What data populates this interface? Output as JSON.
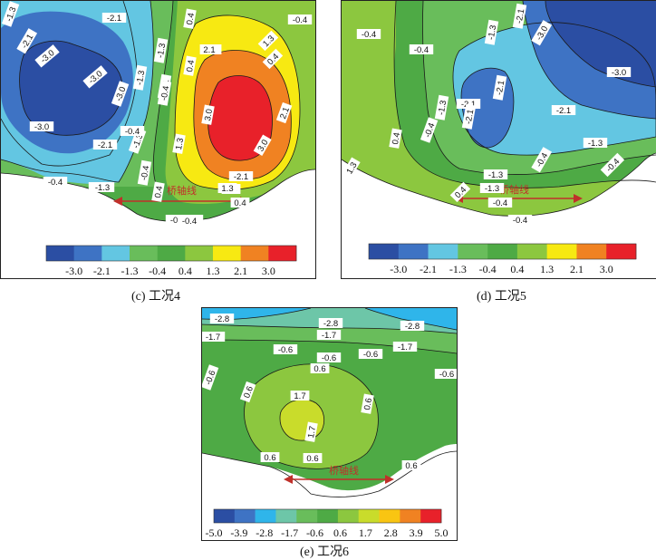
{
  "figure": {
    "panels": [
      {
        "id": "c",
        "caption": "(c) 工况4",
        "bridge_label": "桥轴线",
        "colorbar": {
          "colors": [
            "#2b4ea3",
            "#3e73c4",
            "#63c6e2",
            "#69bd5b",
            "#4eaa45",
            "#8cc73f",
            "#f7e912",
            "#f08222",
            "#e8212a"
          ],
          "tick_labels": [
            "-3.0",
            "-2.1",
            "-1.3",
            "-0.4",
            "0.4",
            "1.3",
            "2.1",
            "3.0"
          ]
        },
        "contour_labels": [
          "-1.3",
          "-2.1",
          "-2.1",
          "-3.0",
          "-3.0",
          "-3.0",
          "-3.0",
          "-2.1",
          "-1.3",
          "-1.3",
          "-2.1",
          "-1.3",
          "-0.4",
          "-0.4",
          "0.4",
          "-0.4",
          "0.4",
          "1.3",
          "2.1",
          "3.0",
          "3.0",
          "2.1",
          "1.3",
          "-0.4",
          "0.4",
          "0.4",
          "1.3",
          "-2.1",
          "-0.4",
          "0.4",
          "-0.4",
          "-1.3",
          "1.3",
          "-0.4",
          "-0.4",
          "-2.1",
          "2.1"
        ]
      },
      {
        "id": "d",
        "caption": "(d) 工况5",
        "bridge_label": "桥轴线",
        "colorbar": {
          "colors": [
            "#2b4ea3",
            "#3e73c4",
            "#63c6e2",
            "#69bd5b",
            "#4eaa45",
            "#8cc73f",
            "#f7e912",
            "#f08222",
            "#e8212a"
          ],
          "tick_labels": [
            "-3.0",
            "-2.1",
            "-1.3",
            "-0.4",
            "0.4",
            "1.3",
            "2.1",
            "3.0"
          ]
        },
        "contour_labels": [
          "-0.4",
          "-1.3",
          "-2.1",
          "-3.0",
          "-2.1",
          "-3.0",
          "-0.4",
          "-2.1",
          "-2.1",
          "-1.3",
          "-2.1",
          "-0.4",
          "-1.3",
          "0.4",
          "-0.4",
          "-1.3",
          "-1.3",
          "-0.4",
          "0.4",
          "1.3",
          "-0.4",
          "-0.4"
        ]
      },
      {
        "id": "e",
        "caption": "(e) 工况6",
        "bridge_label": "桥轴线",
        "colorbar": {
          "colors": [
            "#2b4ea3",
            "#3e73c4",
            "#2fb5ea",
            "#6dc6a8",
            "#69bd5b",
            "#4eaa45",
            "#8cc73f",
            "#c9dc2b",
            "#f9c512",
            "#f08222",
            "#e8212a"
          ],
          "tick_labels": [
            "-5.0",
            "-3.9",
            "-2.8",
            "-1.7",
            "-0.6",
            "0.6",
            "1.7",
            "2.8",
            "3.9",
            "5.0"
          ]
        },
        "contour_labels": [
          "-2.8",
          "-2.8",
          "-2.8",
          "-1.7",
          "-1.7",
          "-1.7",
          "-0.6",
          "-0.6",
          "-0.6",
          "-0.6",
          "-0.6",
          "0.6",
          "0.6",
          "0.6",
          "1.7",
          "1.7",
          "0.6",
          "0.6",
          "0.6"
        ]
      }
    ]
  }
}
